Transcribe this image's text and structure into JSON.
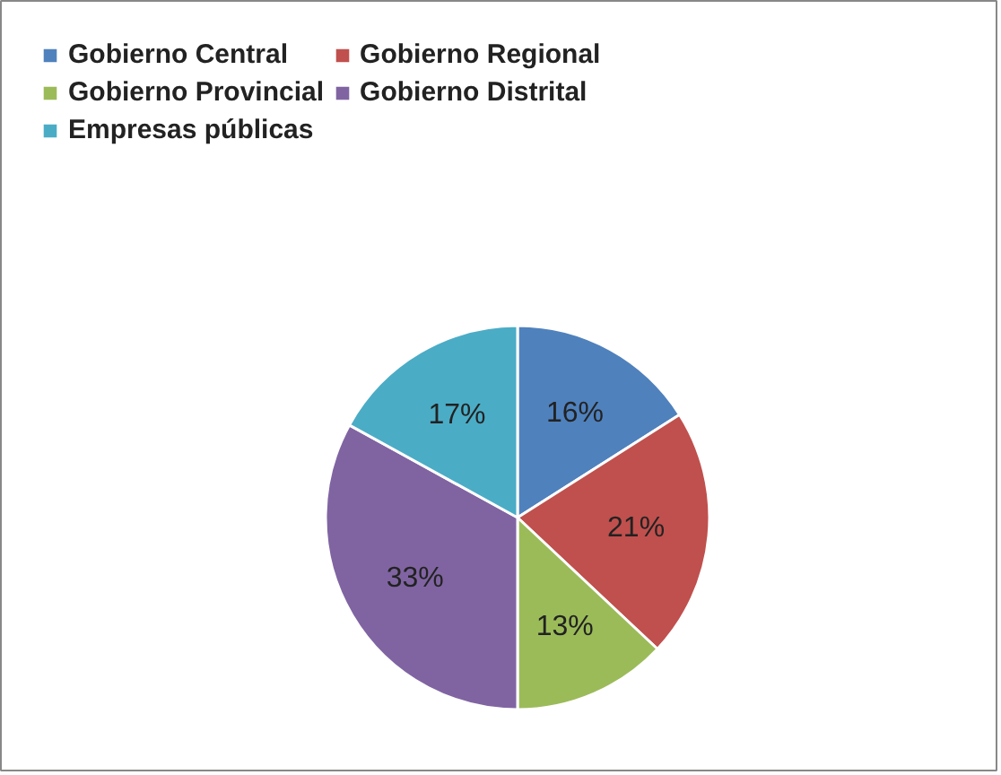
{
  "chart_data": {
    "type": "pie",
    "categories": [
      "Gobierno Central",
      "Gobierno Regional",
      "Gobierno Provincial",
      "Gobierno Distrital",
      "Empresas públicas"
    ],
    "values": [
      16,
      21,
      13,
      33,
      17
    ],
    "colors": [
      "#4f81bd",
      "#c0504d",
      "#9bbb59",
      "#8064a2",
      "#4bacc6"
    ],
    "value_labels": [
      "16%",
      "21%",
      "13%",
      "33%",
      "17%"
    ],
    "legend": "top"
  }
}
